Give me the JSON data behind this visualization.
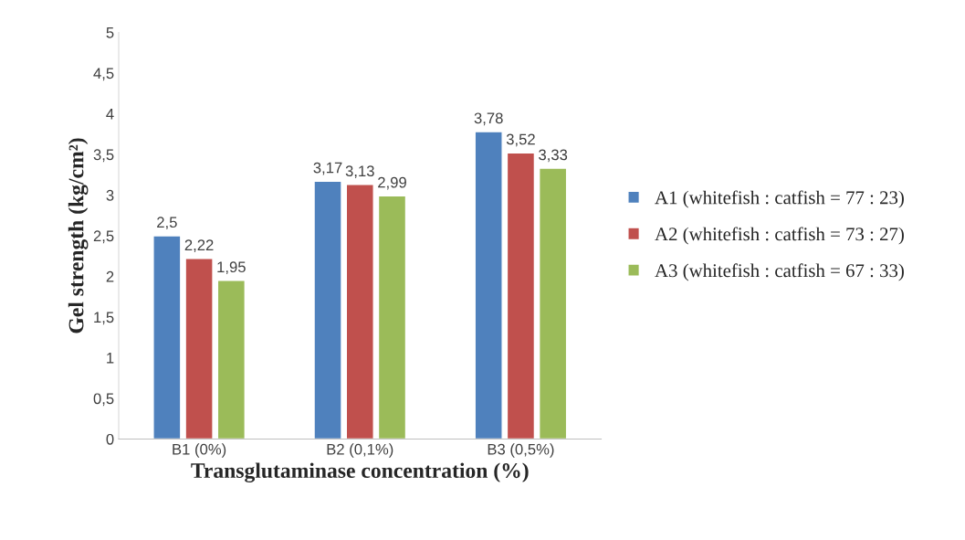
{
  "chart_data": {
    "type": "bar",
    "xlabel": "Transglutaminase concentration (%)",
    "ylabel": "Gel strength (kg/cm²)",
    "categories": [
      "B1 (0%)",
      "B2 (0,1%)",
      "B3 (0,5%)"
    ],
    "series": [
      {
        "name": "A1 (whitefish : catfish = 77 : 23)",
        "color": "#4f81bd",
        "values": [
          2.5,
          3.17,
          3.78
        ],
        "value_labels": [
          "2,5",
          "3,17",
          "3,78"
        ]
      },
      {
        "name": "A2 (whitefish : catfish = 73 : 27)",
        "color": "#c0504d",
        "values": [
          2.22,
          3.13,
          3.52
        ],
        "value_labels": [
          "2,22",
          "3,13",
          "3,52"
        ]
      },
      {
        "name": "A3 (whitefish : catfish = 67 : 33)",
        "color": "#9bbb59",
        "values": [
          1.95,
          2.99,
          3.33
        ],
        "value_labels": [
          "1,95",
          "2,99",
          "3,33"
        ]
      }
    ],
    "ylim": [
      0,
      5
    ],
    "yticks": [
      0,
      {
        "value": 0.5,
        "label": "0,5"
      },
      1,
      {
        "value": 1.5,
        "label": "1,5"
      },
      2,
      {
        "value": 2.5,
        "label": "2,5"
      },
      3,
      {
        "value": 3.5,
        "label": "3,5"
      },
      4,
      {
        "value": 4.5,
        "label": "4,5"
      },
      5
    ],
    "grid": false,
    "legend": "right"
  }
}
